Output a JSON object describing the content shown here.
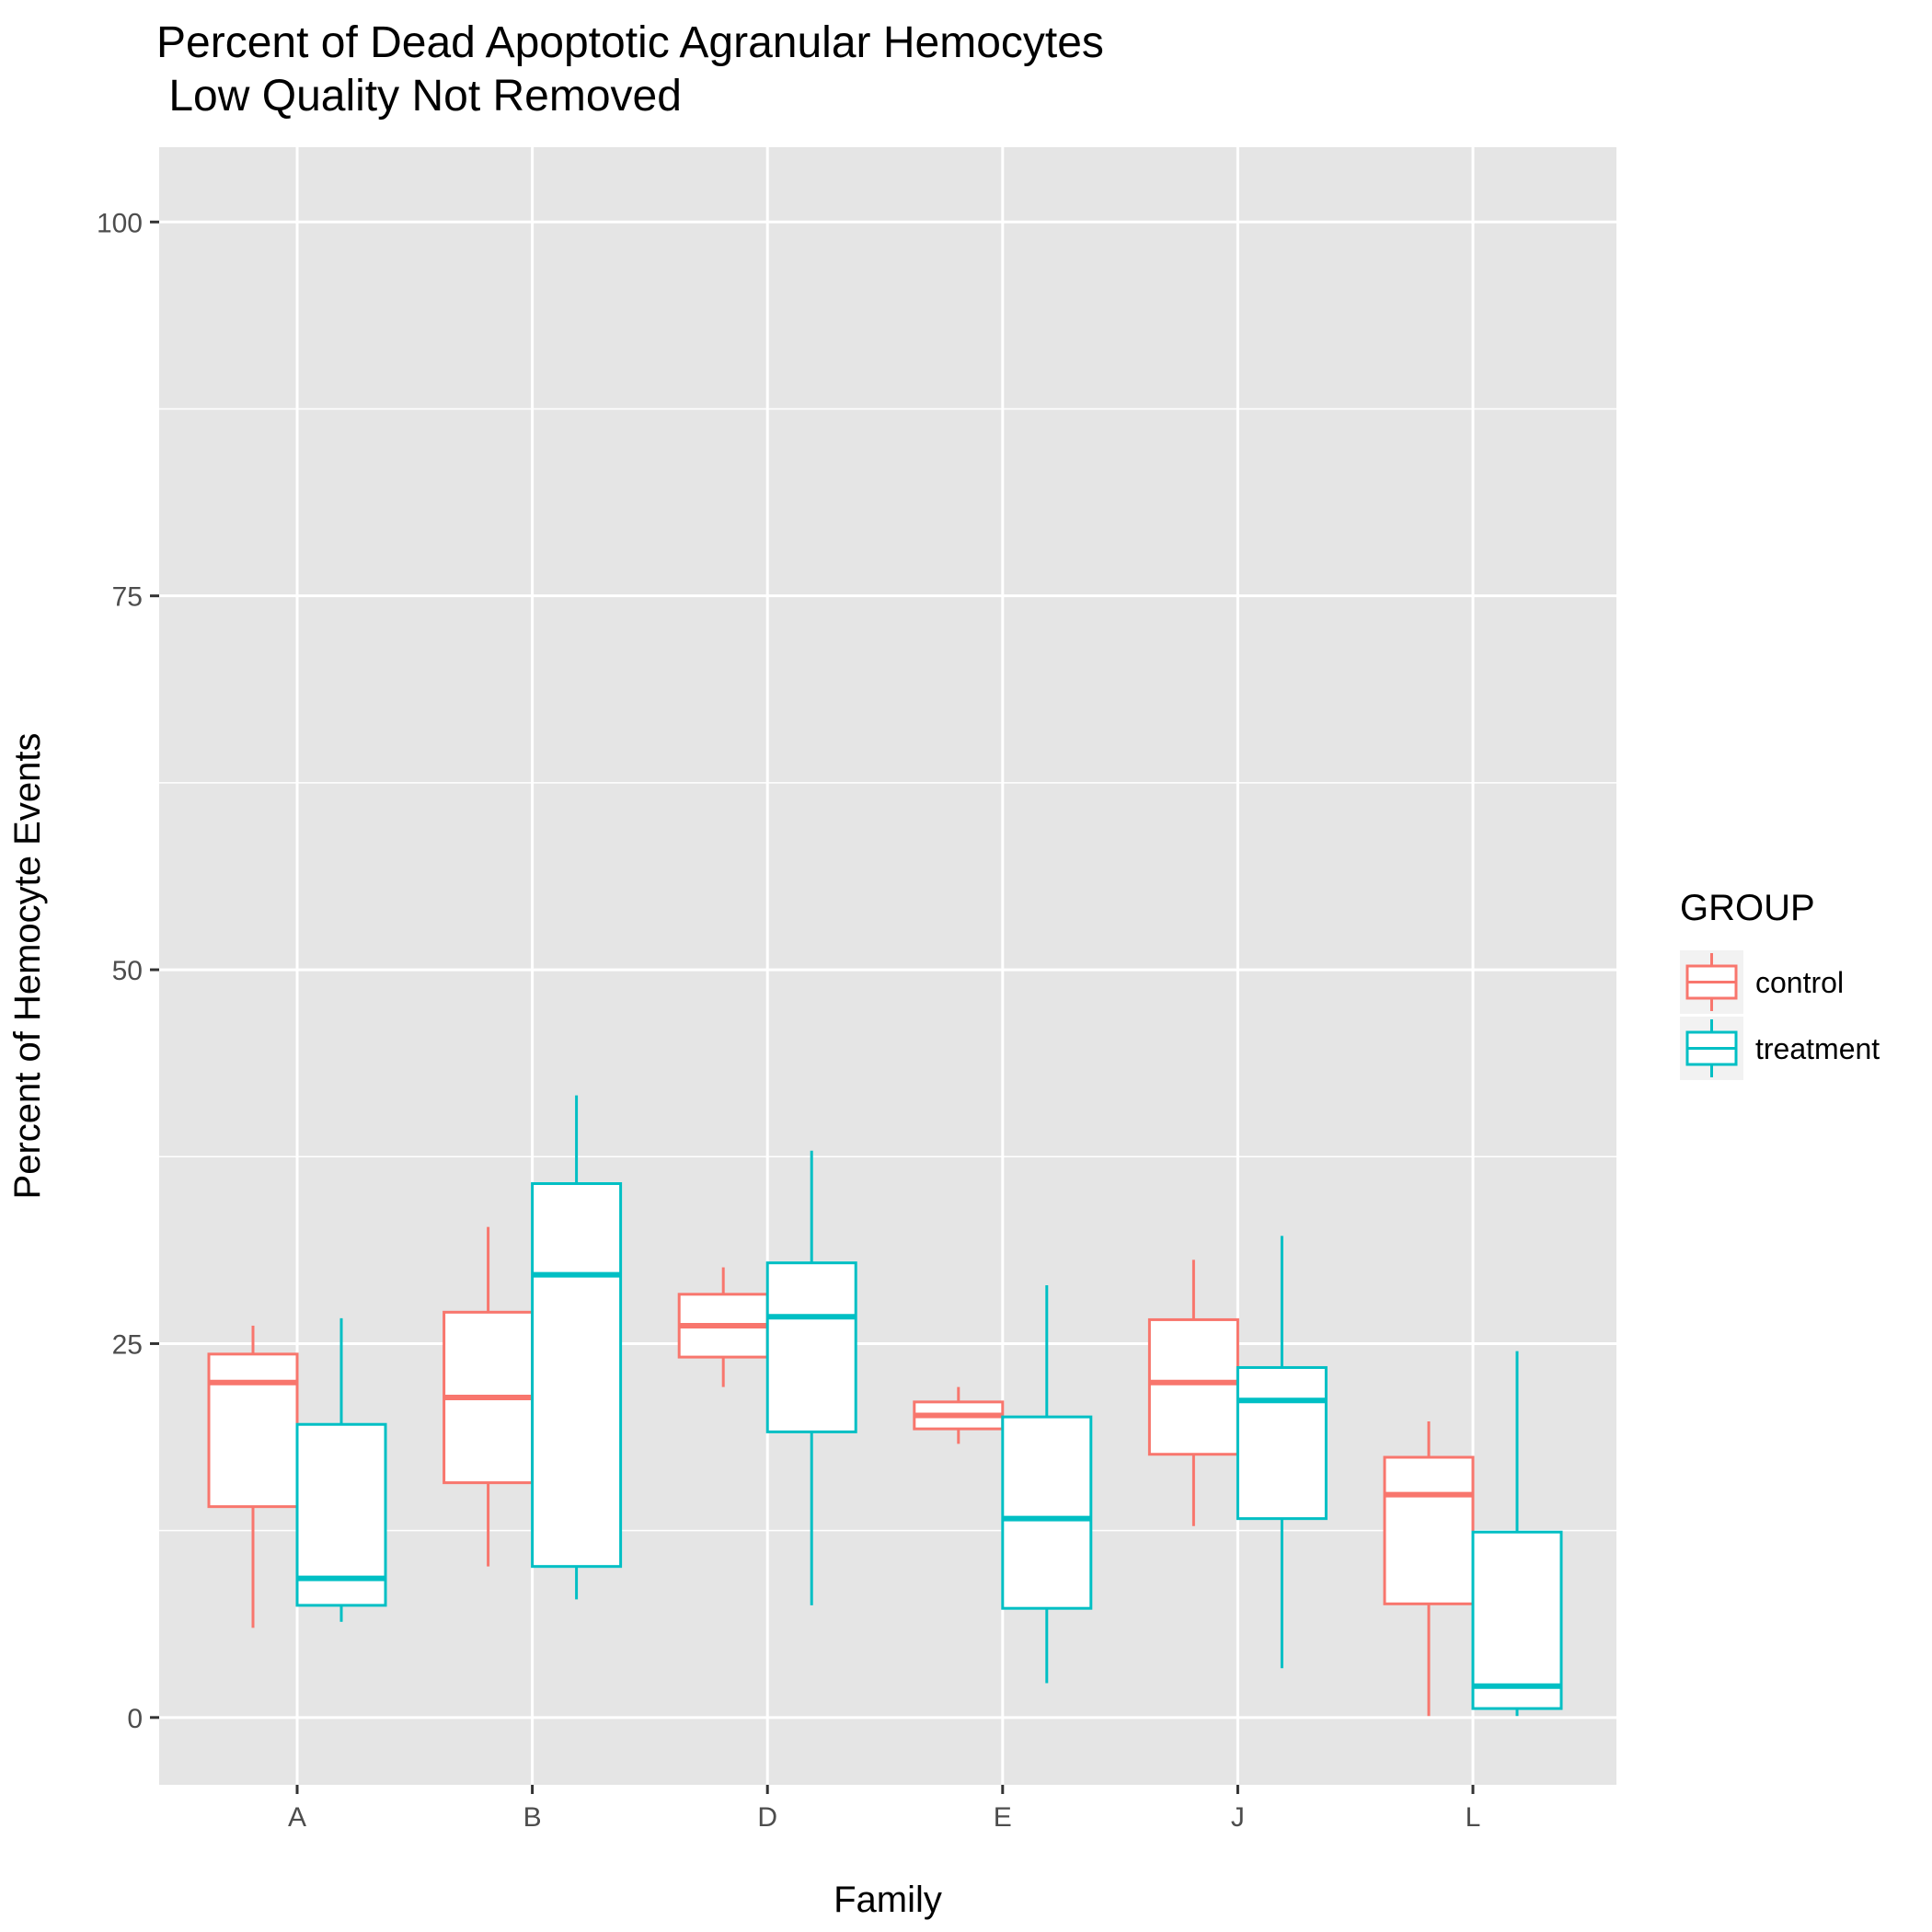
{
  "chart_data": {
    "type": "boxplot",
    "title_line1": "Percent of Dead Apoptotic Agranular Hemocytes",
    "title_line2": " Low Quality Not Removed",
    "xlabel": "Family",
    "ylabel": "Percent of Hemocyte Events",
    "ylim": [
      -4.5,
      105
    ],
    "yticks": [
      0,
      25,
      50,
      75,
      100
    ],
    "categories": [
      "A",
      "B",
      "D",
      "E",
      "J",
      "L"
    ],
    "grid": true,
    "legend": {
      "title": "GROUP",
      "position": "right"
    },
    "series": [
      {
        "name": "control",
        "color": "#F8766D",
        "boxes": [
          {
            "category": "A",
            "whisker_low": 6.0,
            "q1": 14.1,
            "median": 22.4,
            "q3": 24.3,
            "whisker_high": 26.2
          },
          {
            "category": "B",
            "whisker_low": 10.1,
            "q1": 15.7,
            "median": 21.4,
            "q3": 27.1,
            "whisker_high": 32.8
          },
          {
            "category": "D",
            "whisker_low": 22.1,
            "q1": 24.1,
            "median": 26.2,
            "q3": 28.3,
            "whisker_high": 30.1
          },
          {
            "category": "E",
            "whisker_low": 18.3,
            "q1": 19.3,
            "median": 20.2,
            "q3": 21.1,
            "whisker_high": 22.1
          },
          {
            "category": "J",
            "whisker_low": 12.8,
            "q1": 17.6,
            "median": 22.4,
            "q3": 26.6,
            "whisker_high": 30.6
          },
          {
            "category": "L",
            "whisker_low": 0.1,
            "q1": 7.6,
            "median": 14.9,
            "q3": 17.4,
            "whisker_high": 19.8
          }
        ]
      },
      {
        "name": "treatment",
        "color": "#00BFC4",
        "boxes": [
          {
            "category": "A",
            "whisker_low": 6.4,
            "q1": 7.5,
            "median": 9.3,
            "q3": 19.6,
            "whisker_high": 26.7
          },
          {
            "category": "B",
            "whisker_low": 7.9,
            "q1": 10.1,
            "median": 29.6,
            "q3": 35.7,
            "whisker_high": 41.6
          },
          {
            "category": "D",
            "whisker_low": 7.5,
            "q1": 19.1,
            "median": 26.8,
            "q3": 30.4,
            "whisker_high": 37.9
          },
          {
            "category": "E",
            "whisker_low": 2.3,
            "q1": 7.3,
            "median": 13.3,
            "q3": 20.1,
            "whisker_high": 28.9
          },
          {
            "category": "J",
            "whisker_low": 3.3,
            "q1": 13.3,
            "median": 21.2,
            "q3": 23.4,
            "whisker_high": 32.2
          },
          {
            "category": "L",
            "whisker_low": 0.1,
            "q1": 0.6,
            "median": 2.1,
            "q3": 12.4,
            "whisker_high": 24.5
          }
        ]
      }
    ]
  },
  "colors": {
    "panel_background": "#E5E5E5",
    "grid": "#FFFFFF",
    "tick": "#333333"
  }
}
